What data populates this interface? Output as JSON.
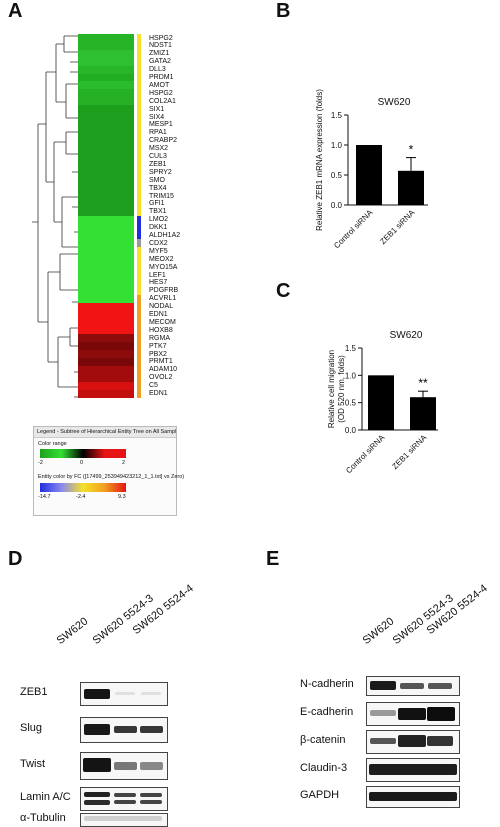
{
  "panels": {
    "a": "A",
    "b": "B",
    "c": "C",
    "d": "D",
    "e": "E"
  },
  "heatmap": {
    "genes": [
      "HSPG2",
      "NDST1",
      "ZMIZ1",
      "GATA2",
      "DLL3",
      "PRDM1",
      "AMOT",
      "HSPG2",
      "COL2A1",
      "SIX1",
      "SIX4",
      "MESP1",
      "RPA1",
      "CRABP2",
      "MSX2",
      "CUL3",
      "ZEB1",
      "SPRY2",
      "SMO",
      "TBX4",
      "TRIM15",
      "GFI1",
      "TBX1",
      "LMO2",
      "DKK1",
      "ALDH1A2",
      "CDX2",
      "MYF5",
      "MEOX2",
      "MYO15A",
      "LEF1",
      "HES7",
      "PDGFRB",
      "ACVRL1",
      "NODAL",
      "EDN1",
      "MECOM",
      "HOXB8",
      "RGMA",
      "PTK7",
      "PBX2",
      "PRMT1",
      "ADAM10",
      "OVOL2",
      "C5",
      "EDN1"
    ],
    "colors": [
      "#27b427",
      "#27b427",
      "#2ec02e",
      "#2ec02e",
      "#28b528",
      "#22ad22",
      "#2bbc2b",
      "#26b026",
      "#26b026",
      "#1d9e1d",
      "#1d9e1d",
      "#1d9e1d",
      "#1d9e1d",
      "#1d9e1d",
      "#1d9e1d",
      "#1d9e1d",
      "#1d9e1d",
      "#1d9e1d",
      "#1d9e1d",
      "#1d9e1d",
      "#1d9e1d",
      "#1d9e1d",
      "#1d9e1d",
      "#33e033",
      "#33e033",
      "#33e033",
      "#33e033",
      "#33e033",
      "#33e033",
      "#33e033",
      "#33e033",
      "#33e033",
      "#33e033",
      "#33e033",
      "#f21414",
      "#f21414",
      "#f21414",
      "#f21414",
      "#8c0b0b",
      "#7a0808",
      "#8c0b0b",
      "#7a0808",
      "#a30c0c",
      "#a30c0c",
      "#d91010",
      "#c40f0f"
    ],
    "side_colors": [
      "#f5e02a",
      "#f5e02a",
      "#f5e02a",
      "#f5e02a",
      "#f5e02a",
      "#f5e02a",
      "#f5e02a",
      "#f5e02a",
      "#f5e02a",
      "#f5e02a",
      "#f5e02a",
      "#f5e02a",
      "#f5e02a",
      "#f5e02a",
      "#f5e02a",
      "#f5e02a",
      "#f5e02a",
      "#f5e02a",
      "#f5e02a",
      "#f5e02a",
      "#f5e02a",
      "#f5e02a",
      "#f5e02a",
      "#1f2ee0",
      "#1f2ee0",
      "#1f2ee0",
      "#9a9a9a",
      "#f5e02a",
      "#f5e02a",
      "#f5e02a",
      "#f5e02a",
      "#f5e02a",
      "#f5e02a",
      "#f0a020",
      "#f0a020",
      "#f0a020",
      "#f0a020",
      "#f0a020",
      "#f0a020",
      "#f0a020",
      "#f0a020",
      "#f0a020",
      "#f0a020",
      "#f0a020",
      "#f0a020",
      "#f0a020"
    ],
    "legend": {
      "title": "Legend - Subtree of Hierarchical Entity Tree on All Samples",
      "color_range_label": "Color range",
      "range_ticks": [
        "-2",
        "0",
        "2"
      ],
      "entity_label": "Entity color by FC ([17499_253949423212_1_1.txt] vs Zero)",
      "entity_ticks": [
        "-14.7",
        "-2.4",
        "9.3"
      ]
    }
  },
  "chart_b": {
    "chart_data": {
      "type": "bar",
      "title": "SW620",
      "categories": [
        "Control siRNA",
        "ZEB1 siRNA"
      ],
      "values": [
        1.0,
        0.57
      ],
      "errors": [
        0,
        0.22
      ],
      "ylabel": "Relative ZEB1 mRNA expression (folds)",
      "ylim": [
        0,
        1.5
      ],
      "yticks": [
        "0.0",
        "0.5",
        "1.0",
        "1.5"
      ],
      "significance": [
        "",
        "*"
      ]
    }
  },
  "chart_c": {
    "chart_data": {
      "type": "bar",
      "title": "SW620",
      "categories": [
        "Control siRNA",
        "ZEB1 siRNA"
      ],
      "values": [
        1.0,
        0.6
      ],
      "errors": [
        0,
        0.11
      ],
      "ylabel": "Relative cell migration (OD 520 nm, folds)",
      "ylabel_lines": [
        "Relative cell migration",
        "(OD 520 nm, folds)"
      ],
      "ylim": [
        0,
        1.5
      ],
      "yticks": [
        "0.0",
        "0.5",
        "1.0",
        "1.5"
      ],
      "significance": [
        "",
        "**"
      ]
    }
  },
  "blot_d": {
    "columns": [
      "SW620",
      "SW620 5524-3",
      "SW620 5524-4"
    ],
    "rows": [
      "ZEB1",
      "Slug",
      "Twist",
      "Lamin A/C",
      "α-Tubulin"
    ]
  },
  "blot_e": {
    "columns": [
      "SW620",
      "SW620 5524-3",
      "SW620 5524-4"
    ],
    "rows": [
      "N-cadherin",
      "E-cadherin",
      "β-catenin",
      "Claudin-3",
      "GAPDH"
    ]
  }
}
